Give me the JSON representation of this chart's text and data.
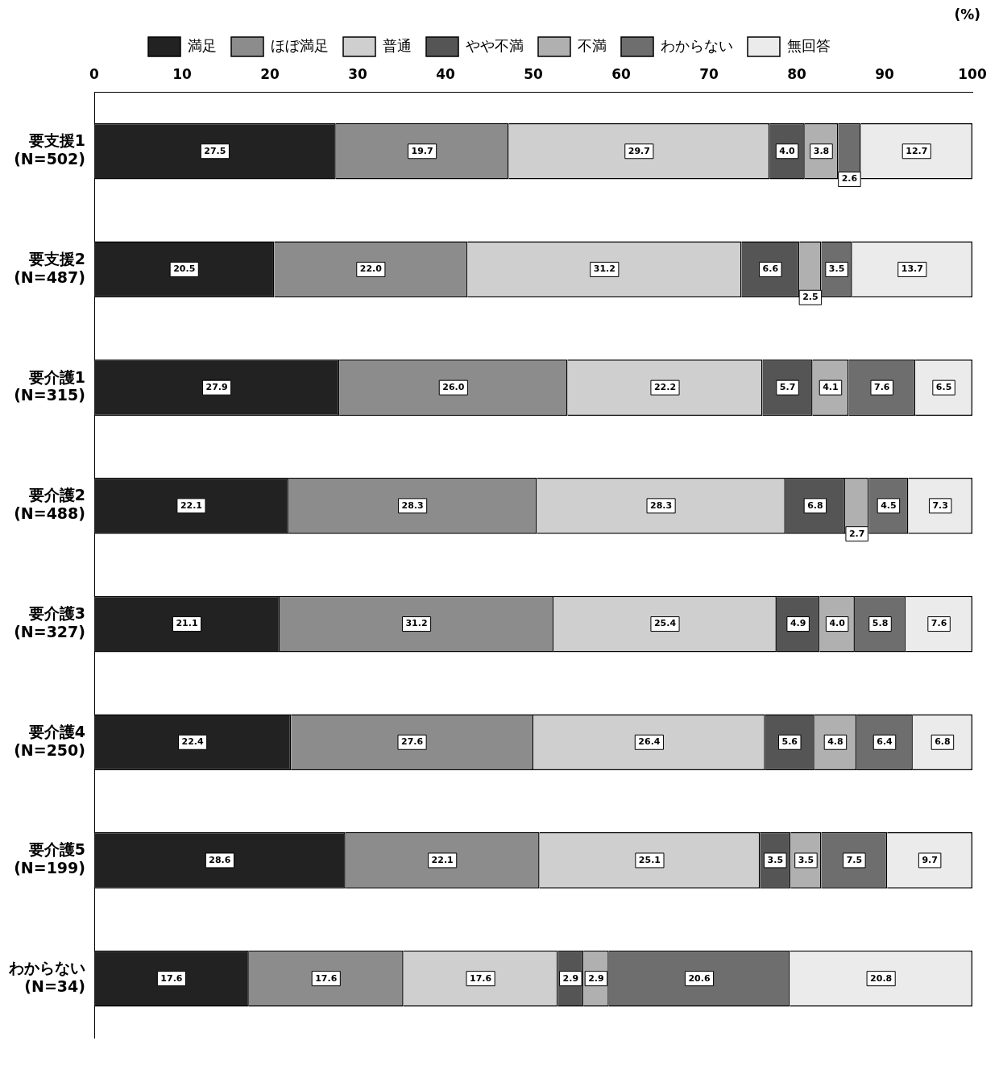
{
  "chart_data": {
    "type": "bar",
    "orientation": "horizontal",
    "stacked": true,
    "categories": [
      "要支援1\n(N=502)",
      "要支援2\n(N=487)",
      "要介護1\n(N=315)",
      "要介護2\n(N=488)",
      "要介護3\n(N=327)",
      "要介護4\n(N=250)",
      "要介護5\n(N=199)",
      "わからない\n(N=34)"
    ],
    "series": [
      {
        "name": "満足",
        "color": "#222222",
        "values": [
          27.5,
          20.5,
          27.9,
          22.1,
          21.1,
          22.4,
          28.6,
          17.6
        ],
        "value_labels": [
          "27.5",
          "20.5",
          "27.9",
          "22.1",
          "21.1",
          "22.4",
          "28.6",
          "17.6"
        ]
      },
      {
        "name": "ほぼ満足",
        "color": "#8c8c8c",
        "values": [
          19.7,
          22.0,
          26.0,
          28.3,
          31.2,
          27.6,
          22.1,
          17.6
        ],
        "value_labels": [
          "19.7",
          "22.0",
          "26.0",
          "28.3",
          "31.2",
          "27.6",
          "22.1",
          "17.6"
        ]
      },
      {
        "name": "普通",
        "color": "#cfcfcf",
        "values": [
          29.7,
          31.2,
          22.2,
          28.3,
          25.4,
          26.4,
          25.1,
          17.6
        ],
        "value_labels": [
          "29.7",
          "31.2",
          "22.2",
          "28.3",
          "25.4",
          "26.4",
          "25.1",
          "17.6"
        ]
      },
      {
        "name": "やや不満",
        "color": "#555555",
        "values": [
          4.0,
          6.6,
          5.7,
          6.8,
          4.9,
          5.6,
          3.5,
          2.9
        ],
        "value_labels": [
          "4.0",
          "6.6",
          "5.7",
          "6.8",
          "4.9",
          "5.6",
          "3.5",
          "2.9"
        ]
      },
      {
        "name": "不満",
        "color": "#b0b0b0",
        "values": [
          3.8,
          2.5,
          4.1,
          2.7,
          4.0,
          4.8,
          3.5,
          2.9
        ],
        "value_labels": [
          "3.8",
          "2.5",
          "4.1",
          "2.7",
          "4.0",
          "4.8",
          "3.5",
          "2.9"
        ]
      },
      {
        "name": "わからない",
        "color": "#6e6e6e",
        "values": [
          2.6,
          3.5,
          7.6,
          4.5,
          5.8,
          6.4,
          7.5,
          20.6
        ],
        "value_labels": [
          "2.6",
          "3.5",
          "7.6",
          "4.5",
          "5.8",
          "6.4",
          "7.5",
          "20.6"
        ]
      },
      {
        "name": "無回答",
        "color": "#ebebeb",
        "values": [
          12.7,
          13.7,
          6.5,
          7.3,
          7.6,
          6.8,
          9.7,
          20.8
        ],
        "value_labels": [
          "12.7",
          "13.7",
          "6.5",
          "7.3",
          "7.6",
          "6.8",
          "9.7",
          "20.8"
        ]
      }
    ],
    "xlim": [
      0,
      100
    ],
    "xticks": [
      0,
      10,
      20,
      30,
      40,
      50,
      60,
      70,
      80,
      90,
      100
    ],
    "grid": false,
    "legend": "top",
    "annotations": [
      "(%)"
    ]
  }
}
